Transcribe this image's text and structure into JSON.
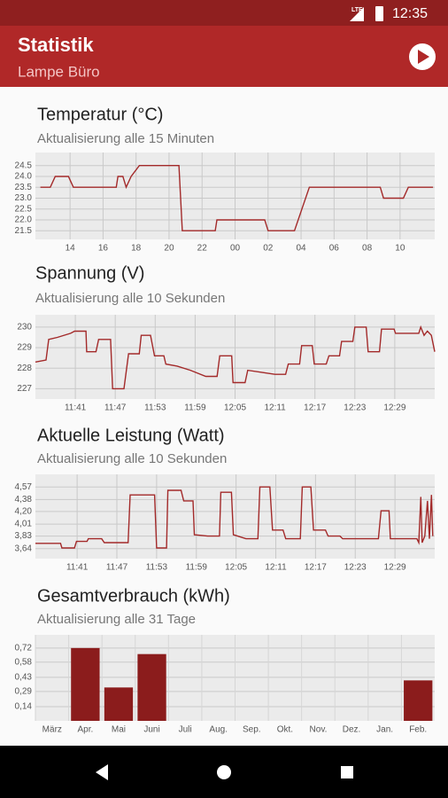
{
  "status_bar": {
    "network": "LTE",
    "time": "12:35"
  },
  "app_bar": {
    "title": "Statistik",
    "subtitle": "Lampe Büro"
  },
  "chart_data": [
    {
      "type": "line",
      "title": "Temperatur (°C)",
      "subtitle": "Aktualisierung alle 15 Minuten",
      "color": "#a32a2a",
      "grid": true,
      "x": [
        12.2,
        12.8,
        13.1,
        13.9,
        14.2,
        16.8,
        16.9,
        17.2,
        17.4,
        17.7,
        18.2,
        20.6,
        20.8,
        22.8,
        22.9,
        25.8,
        26.0,
        27.6,
        28.5,
        32.8,
        33.0,
        34.2,
        34.5,
        36.0
      ],
      "values": [
        23.5,
        23.5,
        24.0,
        24.0,
        23.5,
        23.5,
        24.0,
        24.0,
        23.5,
        24.0,
        24.5,
        24.5,
        21.5,
        21.5,
        22.0,
        22.0,
        21.5,
        21.5,
        23.5,
        23.5,
        23.0,
        23.0,
        23.5,
        23.5
      ],
      "xlim": [
        11.9,
        36.1
      ],
      "ylim": [
        21.1,
        25.1
      ],
      "xticks": [
        14,
        16,
        18,
        20,
        22,
        {
          "value": 24,
          "label": "00"
        },
        {
          "value": 26,
          "label": "02"
        },
        {
          "value": 28,
          "label": "04"
        },
        {
          "value": 30,
          "label": "06"
        },
        {
          "value": 32,
          "label": "08"
        },
        {
          "value": 34,
          "label": "10"
        }
      ],
      "yticks": [
        24.5,
        {
          "value": 24,
          "label": "24.0"
        },
        23.5,
        {
          "value": 23,
          "label": "23.0"
        },
        22.5,
        {
          "value": 22,
          "label": "22.0"
        },
        21.5
      ]
    },
    {
      "type": "line",
      "title": "Spannung (V)",
      "subtitle": "Aktualisierung alle 10 Sekunden",
      "color": "#a32a2a",
      "grid": true,
      "x": [
        695.0,
        696.6,
        697.0,
        698.3,
        700.3,
        700.9,
        702.6,
        702.7,
        704.1,
        704.5,
        706.3,
        706.6,
        708.3,
        709.0,
        710.6,
        710.9,
        712.3,
        712.9,
        714.3,
        714.6,
        716.3,
        718.3,
        720.6,
        722.3,
        722.7,
        724.5,
        724.7,
        726.5,
        726.9,
        729.0,
        731.0,
        732.6,
        733.0,
        734.7,
        735.0,
        736.6,
        736.9,
        738.7,
        739.1,
        740.7,
        741.0,
        742.7,
        743.0,
        744.7,
        745.0,
        746.7,
        747.0,
        748.9,
        749.1,
        752.6,
        752.9,
        753.4,
        753.9,
        754.5,
        755.0
      ],
      "values": [
        228.3,
        228.4,
        229.4,
        229.5,
        229.7,
        229.8,
        229.8,
        228.8,
        228.8,
        229.4,
        229.4,
        227.0,
        227.0,
        228.7,
        228.7,
        229.6,
        229.6,
        228.6,
        228.6,
        228.2,
        228.1,
        227.9,
        227.6,
        227.6,
        228.6,
        228.6,
        227.3,
        227.3,
        227.9,
        227.8,
        227.7,
        227.7,
        228.2,
        228.2,
        229.1,
        229.1,
        228.2,
        228.2,
        228.6,
        228.6,
        229.3,
        229.3,
        230.0,
        230.0,
        228.8,
        228.8,
        229.9,
        229.9,
        229.7,
        229.7,
        230.0,
        229.6,
        229.8,
        229.6,
        228.8
      ],
      "xlim": [
        695,
        755
      ],
      "ylim": [
        226.5,
        230.6
      ],
      "xticks": [
        {
          "value": 701,
          "label": "11:41"
        },
        {
          "value": 707,
          "label": "11:47"
        },
        {
          "value": 713,
          "label": "11:53"
        },
        {
          "value": 719,
          "label": "11:59"
        },
        {
          "value": 725,
          "label": "12:05"
        },
        {
          "value": 731,
          "label": "12:11"
        },
        {
          "value": 737,
          "label": "12:17"
        },
        {
          "value": 743,
          "label": "12:23"
        },
        {
          "value": 749,
          "label": "12:29"
        }
      ],
      "yticks": [
        230,
        229,
        228,
        227
      ]
    },
    {
      "type": "line",
      "title": "Aktuelle Leistung (Watt)",
      "subtitle": "Aktualisierung alle 10 Sekunden",
      "color": "#a32a2a",
      "grid": true,
      "x": [
        694.7,
        698.5,
        698.7,
        700.6,
        700.9,
        702.5,
        702.7,
        704.7,
        705.1,
        708.7,
        709.0,
        712.7,
        713.0,
        714.5,
        714.7,
        716.7,
        717.1,
        718.5,
        718.7,
        720.7,
        722.5,
        722.7,
        724.3,
        724.6,
        726.5,
        728.3,
        728.6,
        730.1,
        730.5,
        732.1,
        732.5,
        734.7,
        735.0,
        736.3,
        736.7,
        738.5,
        738.9,
        740.7,
        741.1,
        746.5,
        746.9,
        748.1,
        748.3,
        752.3,
        752.6,
        752.9,
        753.1,
        753.5,
        753.9,
        754.2,
        754.5,
        754.7
      ],
      "values": [
        3.72,
        3.72,
        3.65,
        3.65,
        3.75,
        3.75,
        3.79,
        3.79,
        3.73,
        3.73,
        4.45,
        4.45,
        3.65,
        3.65,
        4.52,
        4.52,
        4.36,
        4.36,
        3.85,
        3.83,
        3.83,
        4.49,
        4.49,
        3.85,
        3.79,
        3.79,
        4.57,
        4.57,
        3.92,
        3.92,
        3.79,
        3.79,
        4.57,
        4.57,
        3.92,
        3.92,
        3.83,
        3.83,
        3.79,
        3.79,
        4.21,
        4.21,
        3.79,
        3.79,
        3.73,
        4.42,
        3.73,
        3.83,
        4.36,
        3.79,
        4.45,
        3.83
      ],
      "xlim": [
        694.7,
        755
      ],
      "ylim": [
        3.49,
        4.76
      ],
      "xticks": [
        {
          "value": 701,
          "label": "11:41"
        },
        {
          "value": 707,
          "label": "11:47"
        },
        {
          "value": 713,
          "label": "11:53"
        },
        {
          "value": 719,
          "label": "11:59"
        },
        {
          "value": 725,
          "label": "12:05"
        },
        {
          "value": 731,
          "label": "12:11"
        },
        {
          "value": 737,
          "label": "12:17"
        },
        {
          "value": 743,
          "label": "12:23"
        },
        {
          "value": 749,
          "label": "12:29"
        }
      ],
      "yticks": [
        {
          "value": 4.57,
          "label": "4,57"
        },
        {
          "value": 4.38,
          "label": "4,38"
        },
        {
          "value": 4.2,
          "label": "4,20"
        },
        {
          "value": 4.01,
          "label": "4,01"
        },
        {
          "value": 3.83,
          "label": "3,83"
        },
        {
          "value": 3.64,
          "label": "3,64"
        }
      ]
    },
    {
      "type": "bar",
      "title": "Gesamtverbrauch (kWh)",
      "subtitle": "Aktualisierung alle 31 Tage",
      "color": "#8b1c1c",
      "grid": true,
      "categories": [
        "März",
        "Apr.",
        "Mai",
        "Juni",
        "Juli",
        "Aug.",
        "Sep.",
        "Okt.",
        "Nov.",
        "Dez.",
        "Jan.",
        "Feb."
      ],
      "values": [
        0,
        0.72,
        0.33,
        0.66,
        0,
        0,
        0,
        0,
        0,
        0,
        0,
        0.4
      ],
      "ylim": [
        0,
        0.85
      ],
      "yticks": [
        {
          "value": 0.72,
          "label": "0,72"
        },
        {
          "value": 0.58,
          "label": "0,58"
        },
        {
          "value": 0.43,
          "label": "0,43"
        },
        {
          "value": 0.29,
          "label": "0,29"
        },
        {
          "value": 0.14,
          "label": "0,14"
        }
      ]
    }
  ]
}
